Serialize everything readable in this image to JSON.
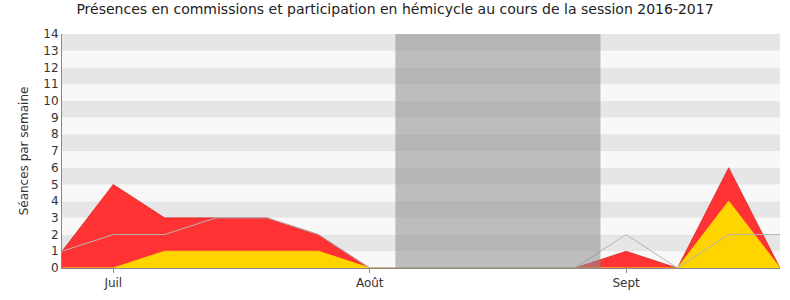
{
  "chart_data": {
    "type": "area",
    "title": "Présences en commissions et participation en hémicycle au cours de la session 2016-2017",
    "y_label": "Séances par semaine",
    "categories": [
      null,
      "Juil",
      null,
      null,
      null,
      null,
      "Août",
      null,
      null,
      null,
      null,
      "Sept",
      null,
      null,
      null
    ],
    "series": [
      {
        "type": "area",
        "color": "#ff3333",
        "values": [
          1,
          5,
          3,
          3,
          3,
          2,
          0,
          0,
          0,
          0,
          0,
          1,
          0,
          6,
          0
        ]
      },
      {
        "type": "area",
        "color": "#ffd400",
        "values": [
          0,
          0,
          1,
          1,
          1,
          1,
          0,
          0,
          0,
          0,
          0,
          0,
          0,
          4,
          0
        ]
      },
      {
        "type": "line",
        "color": "#b4b4b4",
        "values": [
          1,
          2,
          2,
          3,
          3,
          2,
          0,
          0,
          0,
          0,
          0,
          2,
          0,
          2,
          2
        ]
      }
    ],
    "shaded_x": [
      6.5,
      10.5
    ],
    "ylim": [
      0,
      14
    ],
    "yticks": [
      0,
      1,
      2,
      3,
      4,
      5,
      6,
      7,
      8,
      9,
      10,
      11,
      12,
      13,
      14
    ],
    "grid": true
  }
}
